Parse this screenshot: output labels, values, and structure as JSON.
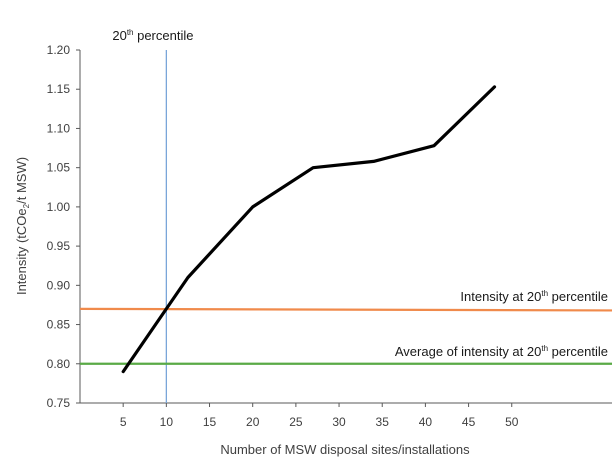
{
  "chart_data": {
    "type": "line",
    "xlabel": "Number of MSW disposal sites/installations",
    "ylabel_parts": {
      "pre": "Intensity (tCOe",
      "sub": "2",
      "post": "/t MSW)"
    },
    "xlim": [
      0,
      52
    ],
    "ylim": [
      0.75,
      1.2
    ],
    "xticks": [
      5,
      10,
      15,
      20,
      25,
      30,
      35,
      40,
      45,
      50
    ],
    "yticks": [
      0.75,
      0.8,
      0.85,
      0.9,
      0.95,
      1.0,
      1.05,
      1.1,
      1.15,
      1.2
    ],
    "xtick_labels": [
      "5",
      "10",
      "15",
      "20",
      "25",
      "30",
      "35",
      "40",
      "45",
      "50"
    ],
    "ytick_labels": [
      "0.75",
      "0.80",
      "0.85",
      "0.90",
      "0.95",
      "1.00",
      "1.05",
      "1.10",
      "1.15",
      "1.20"
    ],
    "series": [
      {
        "color": "#000000",
        "x": [
          5,
          10,
          12.5,
          20,
          27,
          34,
          41,
          48
        ],
        "y": [
          0.79,
          0.87,
          0.91,
          1.0,
          1.05,
          1.058,
          1.078,
          1.153
        ]
      }
    ],
    "reference_lines": [
      {
        "orientation": "vertical",
        "value": 10,
        "color": "#7aa6d9",
        "label_parts": {
          "pre": "20",
          "sup": "th",
          "post": " percentile"
        }
      },
      {
        "orientation": "horizontal",
        "value": 0.87,
        "end_value": 0.868,
        "color": "#f08a4b",
        "label_parts": {
          "pre": "Intensity at 20",
          "sup": "th",
          "post": " percentile"
        }
      },
      {
        "orientation": "horizontal",
        "value": 0.8,
        "end_value": 0.8,
        "color": "#5aaa46",
        "label_parts": {
          "pre": "Average of intensity at 20",
          "sup": "th",
          "post": " percentile"
        }
      }
    ],
    "grid": false,
    "legend": "none"
  }
}
